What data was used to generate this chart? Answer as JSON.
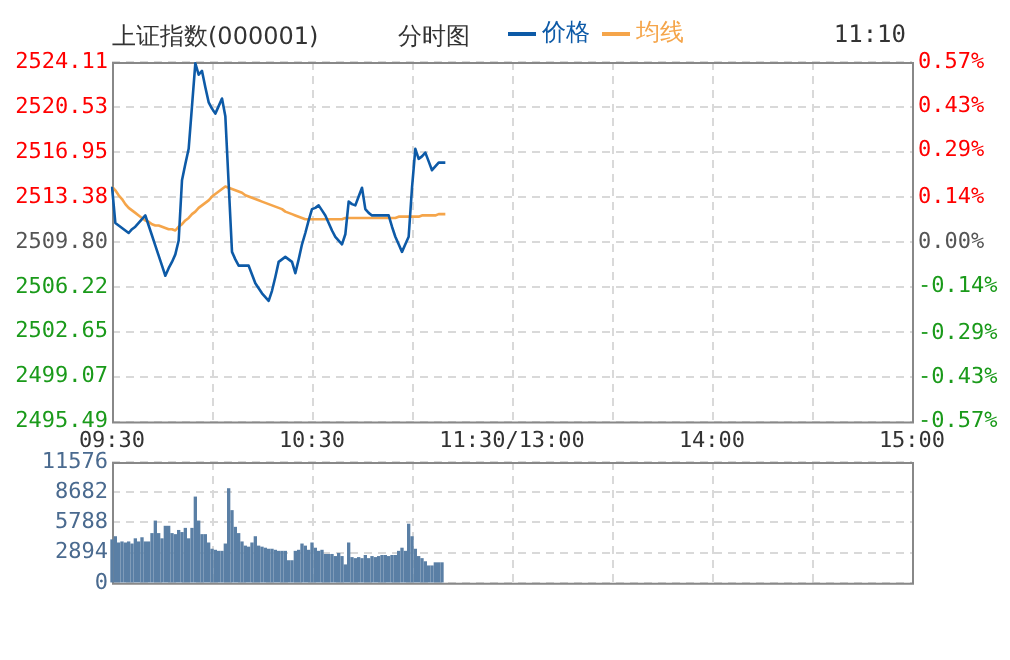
{
  "chart_data": [
    {
      "type": "line",
      "title": "上证指数(000001)",
      "subtitle": "分时图",
      "annotations": [
        "11:10"
      ],
      "legend": "top",
      "grid": true,
      "marker": "none",
      "line_style": "solid",
      "categories": [
        "09:30",
        null,
        null,
        null,
        null,
        null,
        null,
        null,
        null,
        null,
        null,
        null,
        null,
        null,
        null,
        null,
        null,
        null,
        null,
        null,
        null,
        null,
        null,
        null,
        null,
        null,
        null,
        null,
        null,
        null,
        null,
        null,
        null,
        null,
        null,
        null,
        null,
        null,
        null,
        null,
        null,
        null,
        null,
        null,
        null,
        null,
        null,
        null,
        null,
        null,
        null,
        null,
        null,
        null,
        null,
        null,
        null,
        null,
        null,
        null,
        "10:30",
        null,
        null,
        null,
        null,
        null,
        null,
        null,
        null,
        null,
        null,
        null,
        null,
        null,
        null,
        null,
        null,
        null,
        null,
        null,
        null,
        null,
        null,
        null,
        null,
        null,
        null,
        null,
        null,
        null,
        null,
        null,
        null,
        null,
        null,
        null,
        null,
        null,
        null,
        null,
        null,
        null,
        null,
        null,
        null,
        null,
        null,
        null,
        null,
        null,
        null,
        null,
        null,
        null,
        null,
        null,
        null,
        null,
        null,
        null,
        "11:30/13:00",
        null,
        null,
        null,
        null,
        null,
        null,
        null,
        null,
        null,
        null,
        null,
        null,
        null,
        null,
        null,
        null,
        null,
        null,
        null,
        null,
        null,
        null,
        null,
        null,
        null,
        null,
        null,
        null,
        null,
        null,
        null,
        null,
        null,
        null,
        null,
        null,
        null,
        null,
        null,
        null,
        null,
        null,
        null,
        null,
        null,
        null,
        null,
        null,
        null,
        null,
        null,
        null,
        null,
        null,
        null,
        null,
        null,
        null,
        null,
        "14:00",
        null,
        null,
        null,
        null,
        null,
        null,
        null,
        null,
        null,
        null,
        null,
        null,
        null,
        null,
        null,
        null,
        null,
        null,
        null,
        null,
        null,
        null,
        null,
        null,
        null,
        null,
        null,
        null,
        null,
        null,
        null,
        null,
        null,
        null,
        null,
        null,
        null,
        null,
        null,
        null,
        null,
        null,
        null,
        null,
        null,
        null,
        null,
        null,
        null,
        null,
        null,
        null,
        null,
        null,
        null,
        null,
        null,
        null,
        null,
        "15:00"
      ],
      "ylim": [
        2495.49,
        2524.11
      ],
      "yticks": [
        2495.49,
        2499.07,
        2502.65,
        2506.22,
        {
          "value": 2509.8,
          "label": "2509.80"
        },
        2513.38,
        2516.95,
        2520.53,
        2524.11
      ],
      "y2lim": [
        -0.57,
        0.57
      ],
      "y2ticks": [
        {
          "value": -0.57,
          "label": "-0.57%"
        },
        {
          "value": -0.43,
          "label": "-0.43%"
        },
        {
          "value": -0.29,
          "label": "-0.29%"
        },
        {
          "value": -0.14,
          "label": "-0.14%"
        },
        {
          "value": 0,
          "label": "0.00%"
        },
        {
          "value": 0.14,
          "label": "0.14%"
        },
        {
          "value": 0.29,
          "label": "0.29%"
        },
        {
          "value": 0.43,
          "label": "0.43%"
        },
        {
          "value": 0.57,
          "label": "0.57%"
        }
      ],
      "series": [
        {
          "name": "价格",
          "color": "#0d5aa7",
          "values": [
            2514.2,
            2511.3,
            2511.1,
            2510.9,
            2510.7,
            2510.5,
            2510.8,
            2511.0,
            2511.3,
            2511.6,
            2511.9,
            2511.1,
            2510.3,
            2509.5,
            2508.7,
            2507.9,
            2507.1,
            2507.7,
            2508.2,
            2508.8,
            2509.9,
            2514.7,
            2516.0,
            2517.2,
            2520.6,
            2524.0,
            2523.1,
            2523.4,
            2522.1,
            2520.9,
            2520.4,
            2520.0,
            2520.6,
            2521.2,
            2519.8,
            2514.4,
            2509.0,
            2508.4,
            2507.9,
            2507.9,
            2507.9,
            2507.9,
            2507.2,
            2506.5,
            2506.1,
            2505.7,
            2505.4,
            2505.1,
            2505.9,
            2507.0,
            2508.2,
            2508.4,
            2508.6,
            2508.4,
            2508.2,
            2507.3,
            2508.4,
            2509.6,
            2510.5,
            2511.5,
            2512.4,
            2512.5,
            2512.7,
            2512.3,
            2511.9,
            2511.3,
            2510.7,
            2510.2,
            2509.9,
            2509.6,
            2510.4,
            2513.0,
            2512.8,
            2512.7,
            2513.4,
            2514.1,
            2512.4,
            2512.1,
            2511.9,
            2511.9,
            2511.9,
            2511.9,
            2511.9,
            2511.9,
            2511.0,
            2510.2,
            2509.6,
            2509.0,
            2509.6,
            2510.2,
            2514.1,
            2517.2,
            2516.4,
            2516.6,
            2516.9,
            2516.2,
            2515.5,
            2515.8,
            2516.1,
            2516.1,
            2516.1,
            null,
            null,
            null,
            null,
            null,
            null,
            null,
            null,
            null,
            null,
            null,
            null,
            null,
            null,
            null,
            null,
            null,
            null,
            null,
            null,
            null,
            null,
            null,
            null,
            null,
            null,
            null,
            null,
            null,
            null,
            null,
            null,
            null,
            null,
            null,
            null,
            null,
            null,
            null,
            null,
            null,
            null,
            null,
            null,
            null,
            null,
            null,
            null,
            null,
            null,
            null,
            null,
            null,
            null,
            null,
            null,
            null,
            null,
            null,
            null,
            null,
            null,
            null,
            null,
            null,
            null,
            null,
            null,
            null,
            null,
            null,
            null,
            null,
            null,
            null,
            null,
            null,
            null,
            null,
            null,
            null,
            null,
            null,
            null,
            null,
            null,
            null,
            null,
            null,
            null,
            null,
            null,
            null,
            null,
            null,
            null,
            null,
            null,
            null,
            null,
            null,
            null,
            null,
            null,
            null,
            null,
            null,
            null,
            null,
            null,
            null,
            null,
            null,
            null,
            null,
            null,
            null,
            null,
            null,
            null,
            null,
            null,
            null,
            null,
            null,
            null,
            null,
            null,
            null,
            null,
            null,
            null,
            null,
            null,
            null,
            null,
            null,
            null,
            null,
            null
          ]
        },
        {
          "name": "均线",
          "color": "#f5a54a",
          "values": [
            2514.2,
            2513.9,
            2513.5,
            2513.2,
            2512.8,
            2512.5,
            2512.3,
            2512.1,
            2511.9,
            2511.7,
            2511.5,
            2511.4,
            2511.2,
            2511.1,
            2511.1,
            2511.0,
            2510.9,
            2510.8,
            2510.8,
            2510.7,
            2511.0,
            2511.2,
            2511.5,
            2511.7,
            2512.0,
            2512.2,
            2512.5,
            2512.7,
            2512.9,
            2513.1,
            2513.4,
            2513.6,
            2513.8,
            2514.0,
            2514.2,
            2514.1,
            2514.0,
            2513.9,
            2513.8,
            2513.7,
            2513.5,
            2513.4,
            2513.3,
            2513.2,
            2513.1,
            2513.0,
            2512.9,
            2512.8,
            2512.7,
            2512.6,
            2512.5,
            2512.4,
            2512.2,
            2512.1,
            2512.0,
            2511.9,
            2511.8,
            2511.7,
            2511.6,
            2511.6,
            2511.6,
            2511.6,
            2511.6,
            2511.6,
            2511.6,
            2511.6,
            2511.6,
            2511.6,
            2511.6,
            2511.6,
            2511.7,
            2511.7,
            2511.7,
            2511.7,
            2511.7,
            2511.7,
            2511.7,
            2511.7,
            2511.7,
            2511.7,
            2511.7,
            2511.7,
            2511.7,
            2511.7,
            2511.7,
            2511.7,
            2511.8,
            2511.8,
            2511.8,
            2511.8,
            2511.8,
            2511.8,
            2511.8,
            2511.9,
            2511.9,
            2511.9,
            2511.9,
            2511.9,
            2512.0,
            2512.0,
            2512.0,
            null,
            null,
            null,
            null,
            null,
            null,
            null,
            null,
            null,
            null,
            null,
            null,
            null,
            null,
            null,
            null,
            null,
            null,
            null,
            null,
            null,
            null,
            null,
            null,
            null,
            null,
            null,
            null,
            null,
            null,
            null,
            null,
            null,
            null,
            null,
            null,
            null,
            null,
            null,
            null,
            null,
            null,
            null,
            null,
            null,
            null,
            null,
            null,
            null,
            null,
            null,
            null,
            null,
            null,
            null,
            null,
            null,
            null,
            null,
            null,
            null,
            null,
            null,
            null,
            null,
            null,
            null,
            null,
            null,
            null,
            null,
            null,
            null,
            null,
            null,
            null,
            null,
            null,
            null,
            null,
            null,
            null,
            null,
            null,
            null,
            null,
            null,
            null,
            null,
            null,
            null,
            null,
            null,
            null,
            null,
            null,
            null,
            null,
            null,
            null,
            null,
            null,
            null,
            null,
            null,
            null,
            null,
            null,
            null,
            null,
            null,
            null,
            null,
            null,
            null,
            null,
            null,
            null,
            null,
            null,
            null,
            null,
            null,
            null,
            null,
            null,
            null,
            null,
            null,
            null,
            null,
            null,
            null,
            null,
            null,
            null,
            null,
            null,
            null,
            null
          ]
        }
      ]
    },
    {
      "type": "bar",
      "grid": true,
      "legend": false,
      "tick_labels": "y",
      "categories": [
        null,
        null,
        null,
        null,
        null,
        null,
        null,
        null,
        null,
        null,
        null,
        null,
        null,
        null,
        null,
        null,
        null,
        null,
        null,
        null,
        null,
        null,
        null,
        null,
        null,
        null,
        null,
        null,
        null,
        null,
        null,
        null,
        null,
        null,
        null,
        null,
        null,
        null,
        null,
        null,
        null,
        null,
        null,
        null,
        null,
        null,
        null,
        null,
        null,
        null,
        null,
        null,
        null,
        null,
        null,
        null,
        null,
        null,
        null,
        null,
        null,
        null,
        null,
        null,
        null,
        null,
        null,
        null,
        null,
        null,
        null,
        null,
        null,
        null,
        null,
        null,
        null,
        null,
        null,
        null,
        null,
        null,
        null,
        null,
        null,
        null,
        null,
        null,
        null,
        null,
        null,
        null,
        null,
        null,
        null,
        null,
        null,
        null,
        null,
        null,
        null,
        null,
        null,
        null,
        null,
        null,
        null,
        null,
        null,
        null,
        null,
        null,
        null,
        null,
        null,
        null,
        null,
        null,
        null,
        null,
        null,
        null,
        null,
        null,
        null,
        null,
        null,
        null,
        null,
        null,
        null,
        null,
        null,
        null,
        null,
        null,
        null,
        null,
        null,
        null,
        null,
        null,
        null,
        null,
        null,
        null,
        null,
        null,
        null,
        null,
        null,
        null,
        null,
        null,
        null,
        null,
        null,
        null,
        null,
        null,
        null,
        null,
        null,
        null,
        null,
        null,
        null,
        null,
        null,
        null,
        null,
        null,
        null,
        null,
        null,
        null,
        null,
        null,
        null,
        null,
        null,
        null,
        null,
        null,
        null,
        null,
        null,
        null,
        null,
        null,
        null,
        null,
        null,
        null,
        null,
        null,
        null,
        null,
        null,
        null,
        null,
        null,
        null,
        null,
        null,
        null,
        null,
        null,
        null,
        null,
        null,
        null,
        null,
        null,
        null,
        null,
        null,
        null,
        null,
        null,
        null,
        null,
        null,
        null,
        null,
        null,
        null,
        null,
        null,
        null,
        null,
        null,
        null,
        null,
        null,
        null,
        null,
        null,
        null,
        null,
        null
      ],
      "ylim": [
        0,
        11576
      ],
      "yticks": [
        0,
        2894,
        5788,
        8682,
        11576
      ],
      "series": [
        {
          "color": "#5a7fa5",
          "values": [
            4100,
            4400,
            3800,
            3900,
            3800,
            3900,
            3700,
            4200,
            3900,
            4300,
            3900,
            3900,
            4700,
            5900,
            4700,
            4200,
            5400,
            5400,
            4700,
            4600,
            5000,
            4800,
            5200,
            4200,
            5200,
            8200,
            5900,
            4600,
            4600,
            3800,
            3200,
            3100,
            3000,
            3000,
            3700,
            9000,
            6900,
            5300,
            4700,
            3900,
            3500,
            3400,
            3800,
            4400,
            3500,
            3400,
            3300,
            3200,
            3200,
            3100,
            3000,
            3000,
            3000,
            2100,
            2100,
            3000,
            3100,
            3700,
            3500,
            3100,
            3800,
            3300,
            3000,
            3100,
            2700,
            2700,
            2700,
            2500,
            2800,
            2500,
            1700,
            3800,
            2400,
            2300,
            2400,
            2300,
            2600,
            2300,
            2500,
            2400,
            2500,
            2600,
            2600,
            2500,
            2600,
            2600,
            3000,
            3300,
            3000,
            5600,
            4400,
            3200,
            2500,
            2300,
            2000,
            1600,
            1600,
            1900,
            1900,
            1900,
            null,
            null,
            null,
            null,
            null,
            null,
            null,
            null,
            null,
            null,
            null,
            null,
            null,
            null,
            null,
            null,
            null,
            null,
            null,
            null,
            null,
            null,
            null,
            null,
            null,
            null,
            null,
            null,
            null,
            null,
            null,
            null,
            null,
            null,
            null,
            null,
            null,
            null,
            null,
            null,
            null,
            null,
            null,
            null,
            null,
            null,
            null,
            null,
            null,
            null,
            null,
            null,
            null,
            null,
            null,
            null,
            null,
            null,
            null,
            null,
            null,
            null,
            null,
            null,
            null,
            null,
            null,
            null,
            null,
            null,
            null,
            null,
            null,
            null,
            null,
            null,
            null,
            null,
            null,
            null,
            null,
            null,
            null,
            null,
            null,
            null,
            null,
            null,
            null,
            null,
            null,
            null,
            null,
            null,
            null,
            null,
            null,
            null,
            null,
            null,
            null,
            null,
            null,
            null,
            null,
            null,
            null,
            null,
            null,
            null,
            null,
            null,
            null,
            null,
            null,
            null,
            null,
            null,
            null,
            null,
            null,
            null,
            null,
            null,
            null,
            null,
            null,
            null,
            null,
            null,
            null,
            null,
            null,
            null,
            null,
            null,
            null,
            null,
            null,
            null,
            null
          ]
        }
      ]
    }
  ]
}
